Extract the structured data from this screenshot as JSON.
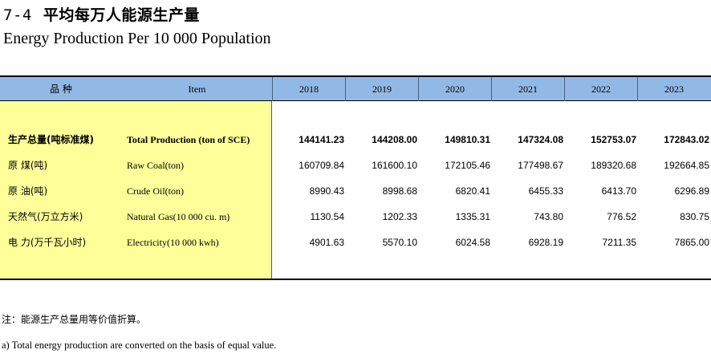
{
  "title": {
    "number": "7-4",
    "cn": "平均每万人能源生产量",
    "en": "Energy Production Per 10 000 Population"
  },
  "table": {
    "header": {
      "item_cn": "品  种",
      "item_en": "Item",
      "years": [
        "2018",
        "2019",
        "2020",
        "2021",
        "2022",
        "2023"
      ]
    },
    "rows": [
      {
        "cn": "生产总量(吨标准煤)",
        "en": "Total Production (ton of  SCE)",
        "values": [
          "144141.23",
          "144208.00",
          "149810.31",
          "147324.08",
          "152753.07",
          "172843.02"
        ]
      },
      {
        "cn": "原    煤(吨)",
        "en": "Raw Coal(ton)",
        "values": [
          "160709.84",
          "161600.10",
          "172105.46",
          "177498.67",
          "189320.68",
          "192664.85"
        ]
      },
      {
        "cn": "原    油(吨)",
        "en": "Crude Oil(ton)",
        "values": [
          "8990.43",
          "8998.68",
          "6820.41",
          "6455.33",
          "6413.70",
          "6296.89"
        ]
      },
      {
        "cn": "天然气(万立方米)",
        "en": "Natural Gas(10 000 cu. m)",
        "values": [
          "1130.54",
          "1202.33",
          "1335.31",
          "743.80",
          "776.52",
          "830.75"
        ]
      },
      {
        "cn": "电    力(万千瓦小时)",
        "en": "Electricity(10 000 kwh)",
        "values": [
          "4901.63",
          "5570.10",
          "6024.58",
          "6928.19",
          "7211.35",
          "7865.00"
        ]
      }
    ]
  },
  "notes": {
    "cn": "注：能源生产总量用等价值折算。",
    "en": "a) Total energy production are converted on the basis of equal value."
  }
}
